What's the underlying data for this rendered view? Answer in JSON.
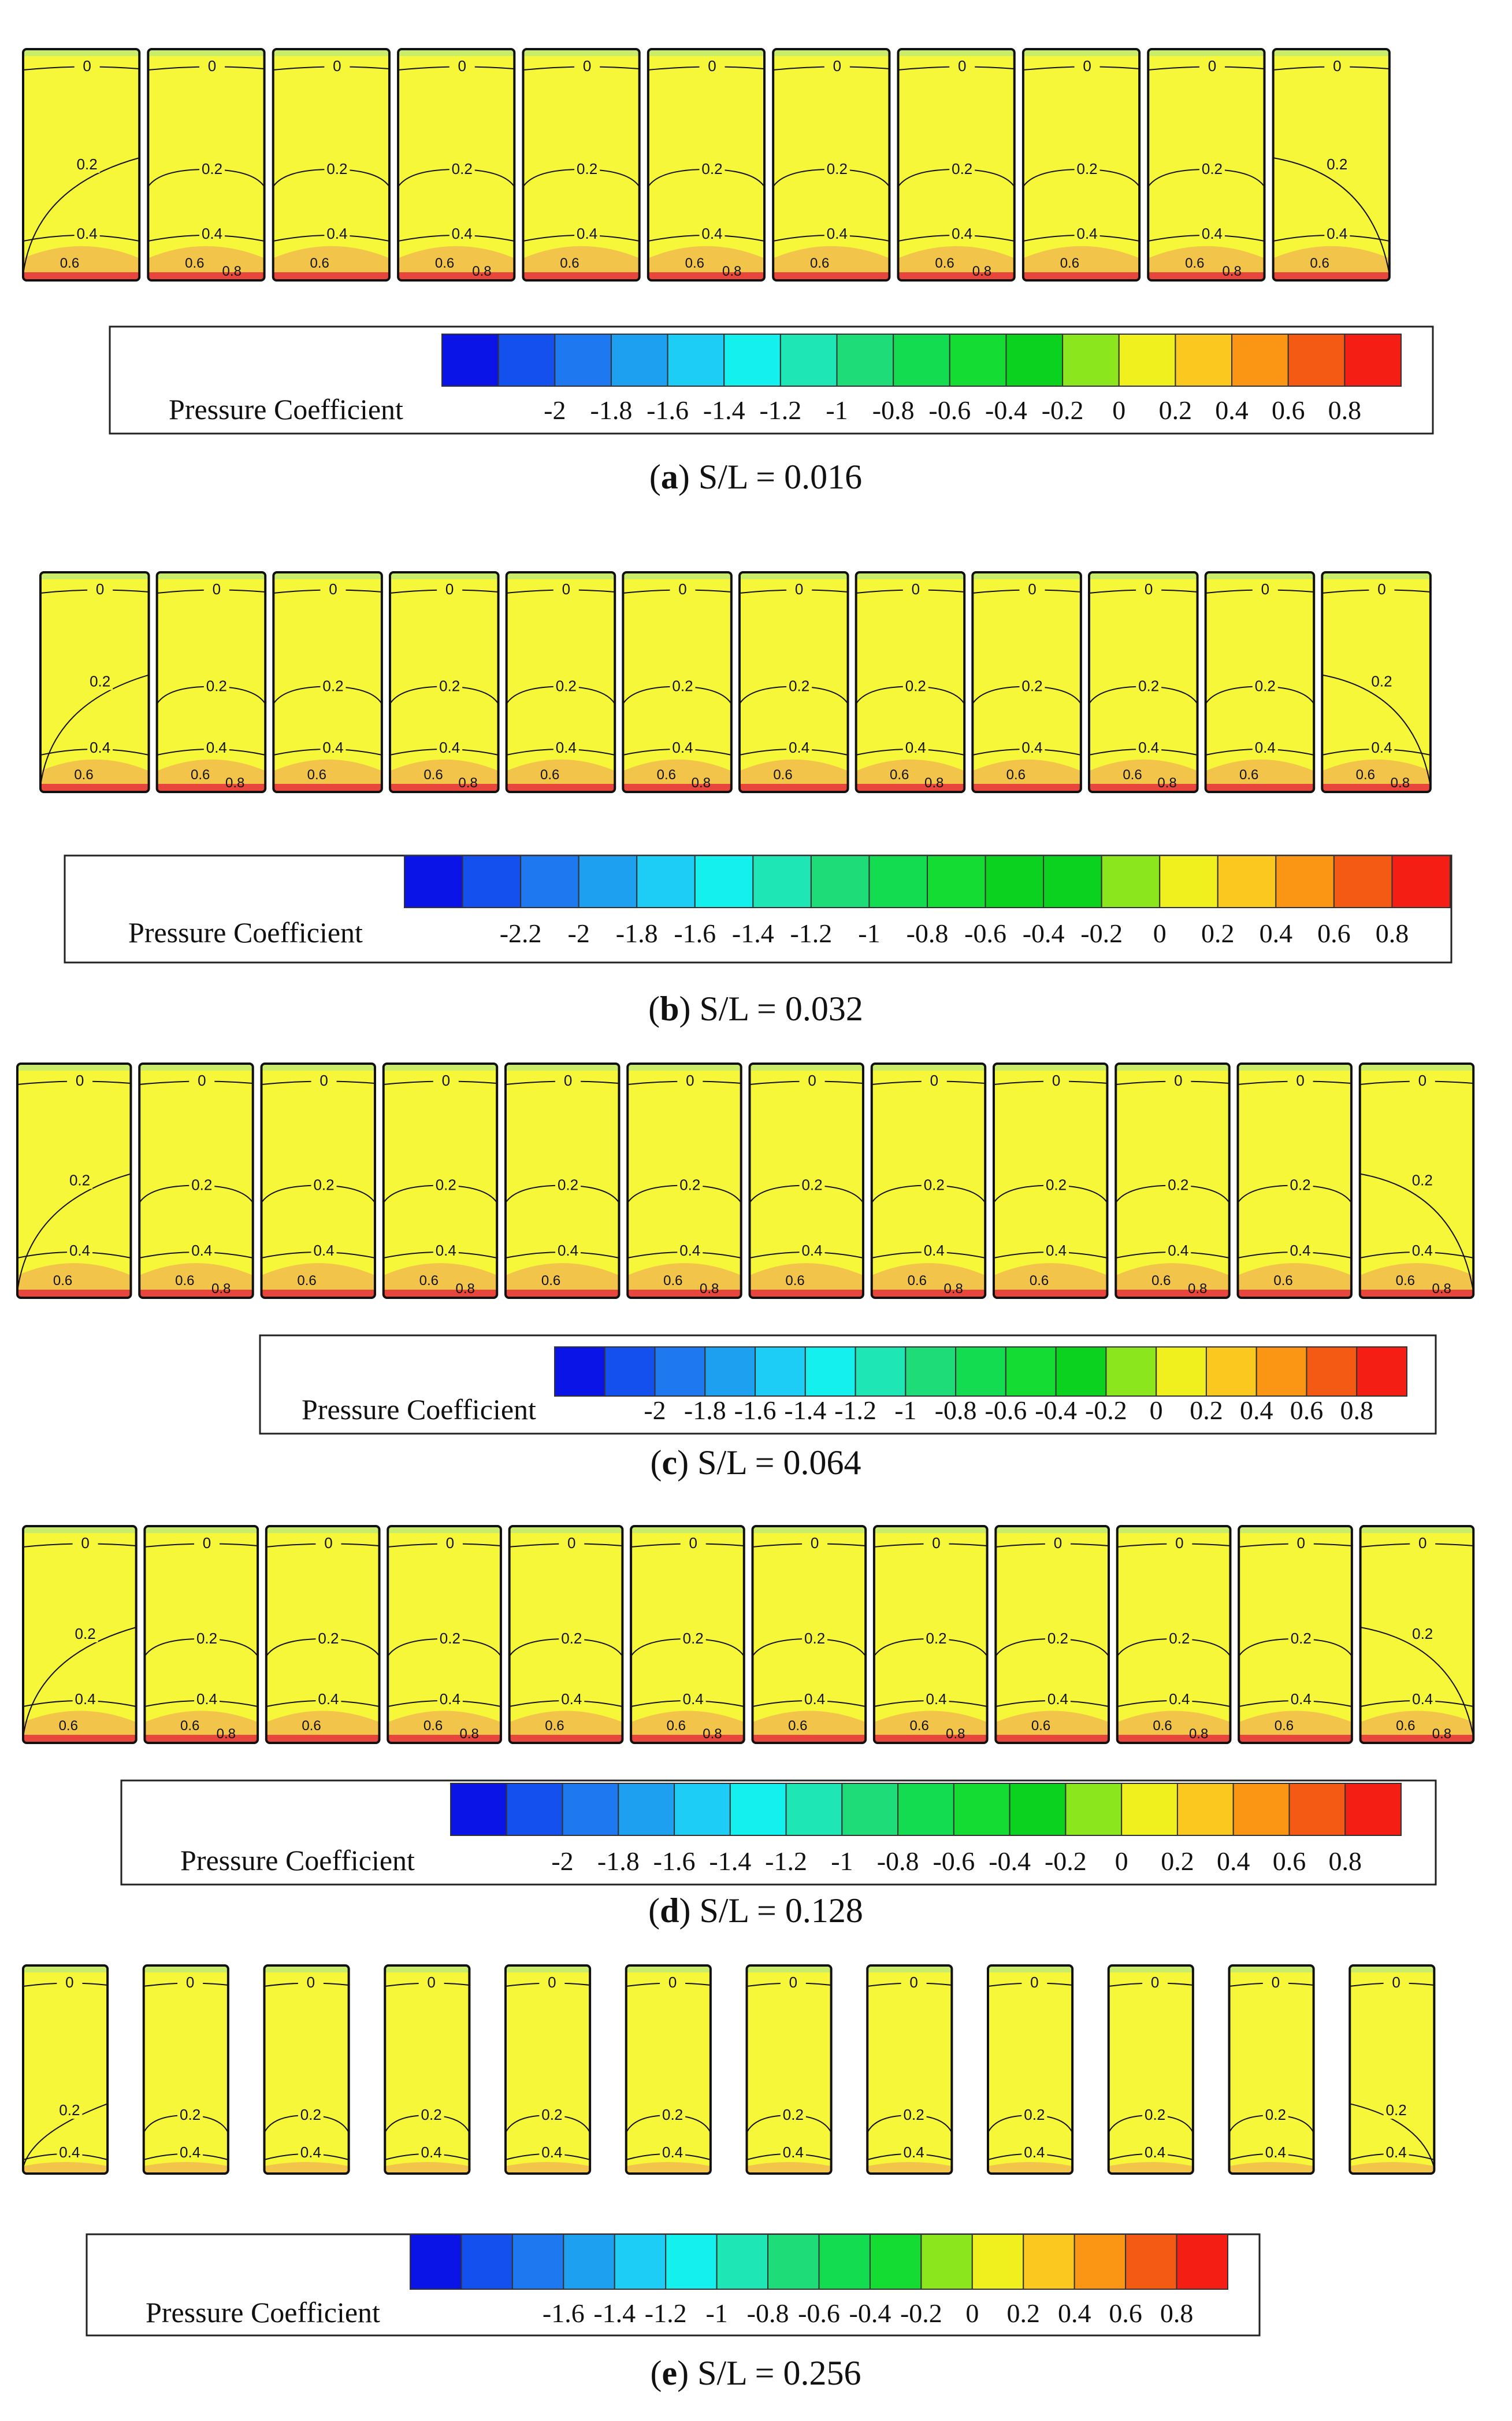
{
  "figure": {
    "colorbar_title": "Pressure Coefficient",
    "contour_labels": [
      "0",
      "0.2",
      "0.4",
      "0.6",
      "0.8"
    ],
    "colors": {
      "field_yellow": "#f7f73a",
      "band_orange": "#f2c44a",
      "band_red": "#e8453c",
      "strip_green": "#c9ec6a",
      "outline": "#111111"
    },
    "panels": [
      {
        "letter": "a",
        "caption": "S/L = 0.016",
        "num_rows": 11,
        "colorbar": {
          "colors": [
            "#0a14e6",
            "#1450ee",
            "#1e78f0",
            "#1ea0f0",
            "#1ecdf5",
            "#14f0ee",
            "#1ee6b4",
            "#1edc78",
            "#14dc50",
            "#14dc32",
            "#0ad21e",
            "#8ce61e",
            "#f0f01e",
            "#fac81e",
            "#fa9614",
            "#f55a14",
            "#f51e14"
          ],
          "ticks": [
            "-2",
            "-1.8",
            "-1.6",
            "-1.4",
            "-1.2",
            "-1",
            "-0.8",
            "-0.6",
            "-0.4",
            "-0.2",
            "0",
            "0.2",
            "0.4",
            "0.6",
            "0.8"
          ]
        }
      },
      {
        "letter": "b",
        "caption": "S/L = 0.032",
        "num_rows": 12,
        "colorbar": {
          "colors": [
            "#0a14e6",
            "#1450ee",
            "#1e78f0",
            "#1ea0f0",
            "#1ecdf5",
            "#14f0ee",
            "#1ee6b4",
            "#1edc78",
            "#14dc50",
            "#14dc32",
            "#0ad21e",
            "#0ad21e",
            "#8ce61e",
            "#f0f01e",
            "#fac81e",
            "#fa9614",
            "#f55a14",
            "#f51e14"
          ],
          "ticks": [
            "-2.2",
            "-2",
            "-1.8",
            "-1.6",
            "-1.4",
            "-1.2",
            "-1",
            "-0.8",
            "-0.6",
            "-0.4",
            "-0.2",
            "0",
            "0.2",
            "0.4",
            "0.6",
            "0.8"
          ]
        }
      },
      {
        "letter": "c",
        "caption": "S/L = 0.064",
        "num_rows": 12,
        "colorbar": {
          "colors": [
            "#0a14e6",
            "#1450ee",
            "#1e78f0",
            "#1ea0f0",
            "#1ecdf5",
            "#14f0ee",
            "#1ee6b4",
            "#1edc78",
            "#14dc50",
            "#14dc32",
            "#0ad21e",
            "#8ce61e",
            "#f0f01e",
            "#fac81e",
            "#fa9614",
            "#f55a14",
            "#f51e14"
          ],
          "ticks": [
            "-2",
            "-1.8",
            "-1.6",
            "-1.4",
            "-1.2",
            "-1",
            "-0.8",
            "-0.6",
            "-0.4",
            "-0.2",
            "0",
            "0.2",
            "0.4",
            "0.6",
            "0.8"
          ]
        }
      },
      {
        "letter": "d",
        "caption": "S/L = 0.128",
        "num_rows": 12,
        "colorbar": {
          "colors": [
            "#0a14e6",
            "#1450ee",
            "#1e78f0",
            "#1ea0f0",
            "#1ecdf5",
            "#14f0ee",
            "#1ee6b4",
            "#1edc78",
            "#14dc50",
            "#14dc32",
            "#0ad21e",
            "#8ce61e",
            "#f0f01e",
            "#fac81e",
            "#fa9614",
            "#f55a14",
            "#f51e14"
          ],
          "ticks": [
            "-2",
            "-1.8",
            "-1.6",
            "-1.4",
            "-1.2",
            "-1",
            "-0.8",
            "-0.6",
            "-0.4",
            "-0.2",
            "0",
            "0.2",
            "0.4",
            "0.6",
            "0.8"
          ]
        }
      },
      {
        "letter": "e",
        "caption": "S/L = 0.256",
        "num_rows": 12,
        "colorbar": {
          "colors": [
            "#0a14e6",
            "#1450ee",
            "#1e78f0",
            "#1ea0f0",
            "#1ecdf5",
            "#14f0ee",
            "#1ee6b4",
            "#1edc78",
            "#14dc50",
            "#14dc32",
            "#8ce61e",
            "#f0f01e",
            "#fac81e",
            "#fa9614",
            "#f55a14",
            "#f51e14"
          ],
          "ticks": [
            "-1.6",
            "-1.4",
            "-1.2",
            "-1",
            "-0.8",
            "-0.6",
            "-0.4",
            "-0.2",
            "0",
            "0.2",
            "0.4",
            "0.6",
            "0.8"
          ]
        }
      }
    ]
  }
}
